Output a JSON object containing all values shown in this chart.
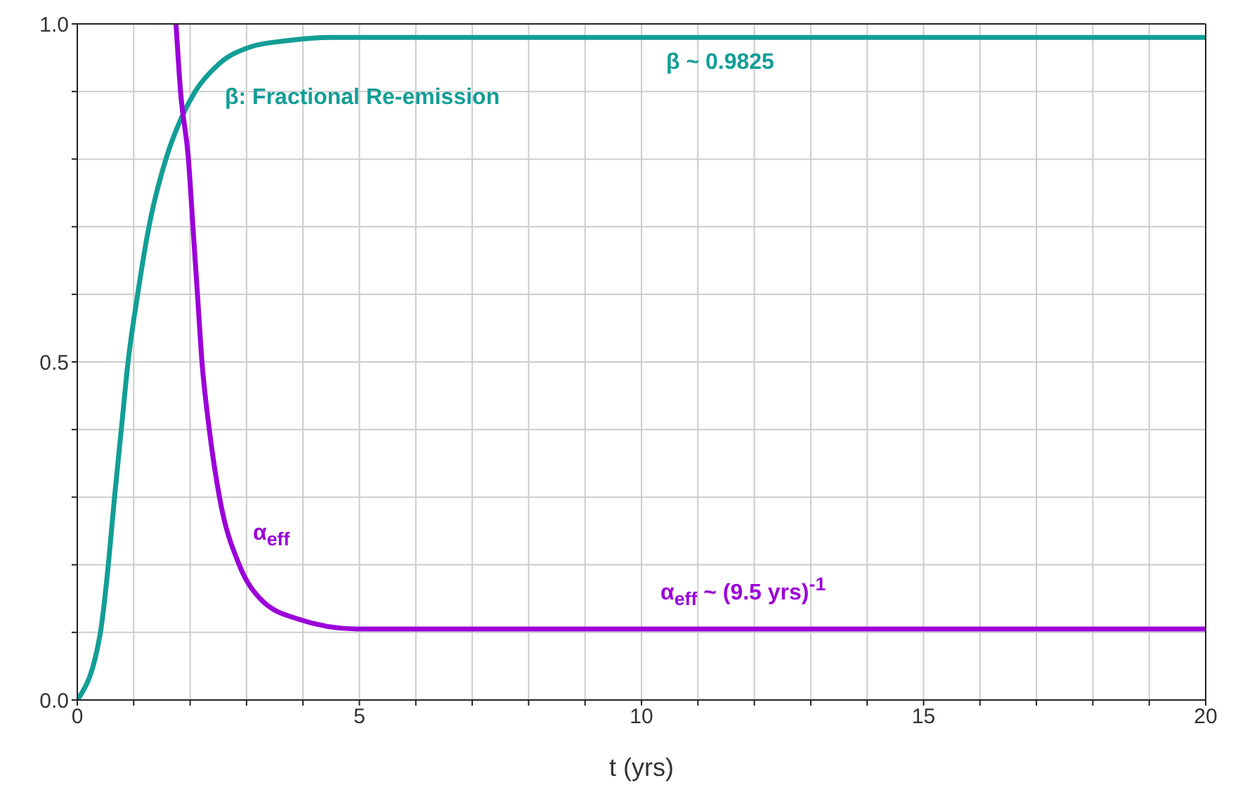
{
  "chart_data": {
    "type": "line",
    "xlabel": "t (yrs)",
    "xlim": [
      0,
      20
    ],
    "xticks": [
      0,
      {
        "value": 1,
        "label": null
      },
      {
        "value": 2,
        "label": null
      },
      {
        "value": 3,
        "label": null
      },
      {
        "value": 4,
        "label": null
      },
      5,
      {
        "value": 6,
        "label": null
      },
      {
        "value": 7,
        "label": null
      },
      {
        "value": 8,
        "label": null
      },
      {
        "value": 9,
        "label": null
      },
      10,
      {
        "value": 11,
        "label": null
      },
      {
        "value": 12,
        "label": null
      },
      {
        "value": 13,
        "label": null
      },
      {
        "value": 14,
        "label": null
      },
      15,
      {
        "value": 16,
        "label": null
      },
      {
        "value": 17,
        "label": null
      },
      {
        "value": 18,
        "label": null
      },
      {
        "value": 19,
        "label": null
      },
      20
    ],
    "ylim": [
      0,
      1
    ],
    "yticks": [
      {
        "value": 0,
        "label": "0.0"
      },
      {
        "value": 0.1,
        "label": null
      },
      {
        "value": 0.2,
        "label": null
      },
      {
        "value": 0.3,
        "label": null
      },
      {
        "value": 0.4,
        "label": null
      },
      0.5,
      {
        "value": 0.6,
        "label": null
      },
      {
        "value": 0.7,
        "label": null
      },
      {
        "value": 0.8,
        "label": null
      },
      {
        "value": 0.9,
        "label": null
      },
      {
        "value": 1,
        "label": "1.0"
      }
    ],
    "grid": true,
    "series": [
      {
        "color": "#129e96",
        "x": [
          0,
          0.41,
          0.55,
          0.66,
          0.78,
          0.9,
          1.07,
          1.27,
          1.57,
          1.84,
          2.09,
          2.5,
          3.07,
          3.7,
          4.5,
          6,
          10,
          15,
          20
        ],
        "values": [
          0,
          0.1,
          0.2,
          0.3,
          0.4,
          0.5,
          0.6,
          0.7,
          0.8,
          0.86,
          0.9,
          0.94,
          0.966,
          0.975,
          0.98,
          0.98,
          0.98,
          0.98,
          0.98
        ]
      },
      {
        "color": "#9b00d9",
        "x": [
          1.75,
          1.83,
          1.97,
          2.05,
          2.13,
          2.21,
          2.34,
          2.52,
          2.87,
          3.24,
          3.9,
          4.96,
          6,
          10,
          15,
          20
        ],
        "values": [
          1,
          0.9,
          0.8,
          0.7,
          0.6,
          0.5,
          0.4,
          0.3,
          0.2,
          0.15,
          0.12,
          0.105,
          0.105,
          0.105,
          0.105,
          0.105
        ]
      }
    ],
    "annotations": [
      "β: Fractional Re-emission",
      "β ~ 0.9825",
      "α$_{eff}$",
      "α$_{eff}$ ~ (9.5 yrs)$^{-1}$"
    ]
  }
}
